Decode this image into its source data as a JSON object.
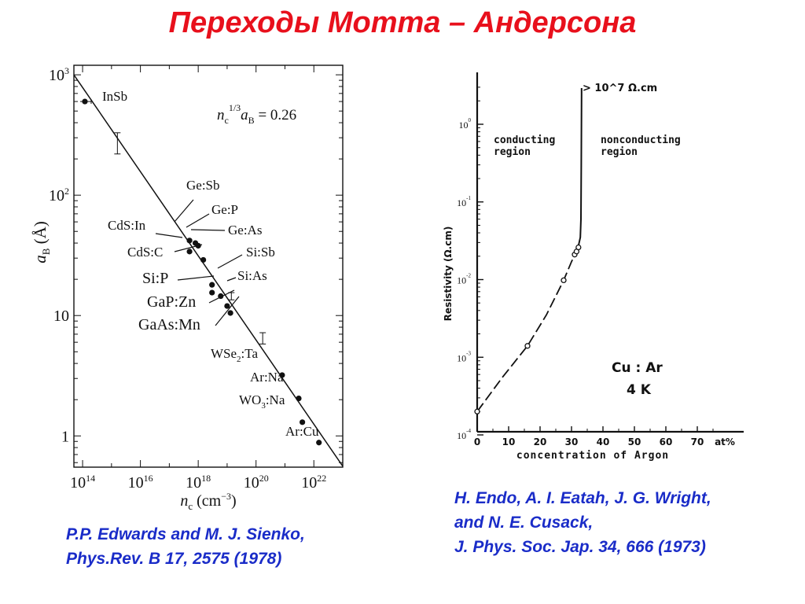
{
  "slide": {
    "title": "Переходы Мотта – Андерсона"
  },
  "colors": {
    "title": "#e8101c",
    "citation": "#1a2cc8",
    "ink": "#111111"
  },
  "citations": {
    "left": [
      "P.P. Edwards and M. J. Sienko,",
      "Phys.Rev. B 17, 2575 (1978)"
    ],
    "right": [
      "H. Endo, A. I. Eatah, J. G. Wright,",
      "and N. E. Cusack,",
      "J. Phys. Soc. Jap. 34, 666 (1973)"
    ]
  },
  "chart_data": [
    {
      "type": "scatter",
      "title": "",
      "xlabel": "n_c (cm^-3)",
      "ylabel": "a_B (Å)",
      "xscale": "log",
      "yscale": "log",
      "xlim": [
        50000000000000.0,
        1e+23
      ],
      "ylim": [
        0.55,
        1200
      ],
      "x_ticks": [
        {
          "value": 100000000000000.0,
          "base": "10",
          "exp": "14"
        },
        {
          "value": 1e+16,
          "base": "10",
          "exp": "16"
        },
        {
          "value": 1e+18,
          "base": "10",
          "exp": "18"
        },
        {
          "value": 1e+20,
          "base": "10",
          "exp": "20"
        },
        {
          "value": 1e+22,
          "base": "10",
          "exp": "22"
        }
      ],
      "y_ticks": [
        {
          "value": 1,
          "base": "1",
          "exp": ""
        },
        {
          "value": 10,
          "base": "10",
          "exp": ""
        },
        {
          "value": 100,
          "base": "10",
          "exp": "2"
        },
        {
          "value": 1000,
          "base": "10",
          "exp": "3"
        }
      ],
      "annotation": "n_c^1/3 a_B = 0.26",
      "fit_line": [
        [
          50000000000000.0,
          1000
        ],
        [
          1e+23,
          0.56
        ]
      ],
      "error_bars": [
        {
          "x": 1600000000000000.0,
          "y_low": 220,
          "y_high": 330
        },
        {
          "x": 1.4e+19,
          "y_low": 13.5,
          "y_high": 15.5
        },
        {
          "x": 1.7e+20,
          "y_low": 5.8,
          "y_high": 7.2
        }
      ],
      "points": [
        {
          "label": "InSb",
          "x": 120000000000000.0,
          "y": 600
        },
        {
          "label": "Ge:Sb",
          "x": 5e+17,
          "y": 42
        },
        {
          "label": "Ge:P",
          "x": 8e+17,
          "y": 40
        },
        {
          "label": "Ge:As",
          "x": 1e+18,
          "y": 38
        },
        {
          "label": "CdS:In",
          "x": 5e+17,
          "y": 34
        },
        {
          "label": "CdS:C",
          "x": 1.5e+18,
          "y": 29
        },
        {
          "label": "Si:Sb",
          "x": 3e+18,
          "y": 18
        },
        {
          "label": "Si:P",
          "x": 3e+18,
          "y": 15.5
        },
        {
          "label": "Si:As",
          "x": 6e+18,
          "y": 14.5
        },
        {
          "label": "GaP:Zn",
          "x": 1e+19,
          "y": 12
        },
        {
          "label": "GaAs:Mn",
          "x": 1.3e+19,
          "y": 10.5
        },
        {
          "label": "WSe2:Ta",
          "x": 8e+20,
          "y": 3.2
        },
        {
          "label": "Ar:Na",
          "x": 3e+21,
          "y": 2.05
        },
        {
          "label": "WO3:Na",
          "x": 4e+21,
          "y": 1.3
        },
        {
          "label": "Ar:Cu",
          "x": 1.5e+22,
          "y": 0.88
        }
      ]
    },
    {
      "type": "line",
      "title": "",
      "xlabel": "concentration of Argon",
      "ylabel": "Resistivity   (Ω.cm)",
      "yscale": "log",
      "xlim": [
        0,
        85
      ],
      "ylim": [
        0.0001,
        3
      ],
      "x_ticks": [
        "0",
        "10",
        "20",
        "30",
        "40",
        "50",
        "60",
        "70"
      ],
      "x_unit": "at%",
      "y_ticks": [
        {
          "value": 0.0001,
          "base": "10",
          "exp": "-4"
        },
        {
          "value": 0.001,
          "base": "10",
          "exp": "-3"
        },
        {
          "value": 0.01,
          "base": "10",
          "exp": "-2"
        },
        {
          "value": 0.1,
          "base": "10",
          "exp": "-1"
        },
        {
          "value": 1,
          "base": "10",
          "exp": "0"
        }
      ],
      "region_labels": {
        "conducting": [
          "conducting",
          "region"
        ],
        "nonconducting": [
          "nonconducting",
          "region"
        ]
      },
      "top_label": "> 10^7 Ω.cm",
      "system_label": "Cu : Ar",
      "temperature_label": "4 K",
      "open_points": [
        {
          "x": 0,
          "y": 0.0002
        },
        {
          "x": 16,
          "y": 0.0014
        },
        {
          "x": 27.5,
          "y": 0.0098
        },
        {
          "x": 31,
          "y": 0.021
        },
        {
          "x": 31.6,
          "y": 0.023
        },
        {
          "x": 32.2,
          "y": 0.026
        }
      ],
      "curve": [
        {
          "x": 0,
          "y": 0.0002
        },
        {
          "x": 8,
          "y": 0.00055
        },
        {
          "x": 16,
          "y": 0.0014
        },
        {
          "x": 22,
          "y": 0.0035
        },
        {
          "x": 27.5,
          "y": 0.0098
        },
        {
          "x": 30,
          "y": 0.017
        },
        {
          "x": 32,
          "y": 0.025
        },
        {
          "x": 32.8,
          "y": 0.035
        },
        {
          "x": 33,
          "y": 0.06
        },
        {
          "x": 33.1,
          "y": 0.3
        },
        {
          "x": 33.2,
          "y": 2.5
        }
      ]
    }
  ]
}
